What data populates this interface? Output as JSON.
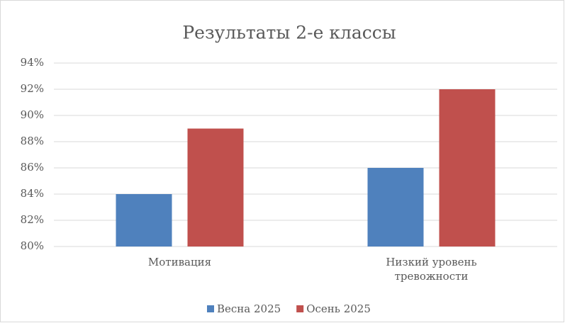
{
  "chart_data": {
    "type": "bar",
    "title": "Результаты 2-е классы",
    "categories": [
      "Мотивация",
      "Низкий уровень тревожности"
    ],
    "series": [
      {
        "name": "Весна 2025",
        "color": "#4f81bd",
        "values": [
          84,
          86
        ]
      },
      {
        "name": "Осень 2025",
        "color": "#c0504d",
        "values": [
          89,
          92
        ]
      }
    ],
    "ylim": [
      80,
      94
    ],
    "yticks": [
      {
        "value": 80,
        "label": "80%"
      },
      {
        "value": 82,
        "label": "82%"
      },
      {
        "value": 84,
        "label": "84%"
      },
      {
        "value": 86,
        "label": "86%"
      },
      {
        "value": 88,
        "label": "88%"
      },
      {
        "value": 90,
        "label": "90%"
      },
      {
        "value": 92,
        "label": "92%"
      },
      {
        "value": 94,
        "label": "94%"
      }
    ],
    "grid": true,
    "legend": "bottom"
  }
}
